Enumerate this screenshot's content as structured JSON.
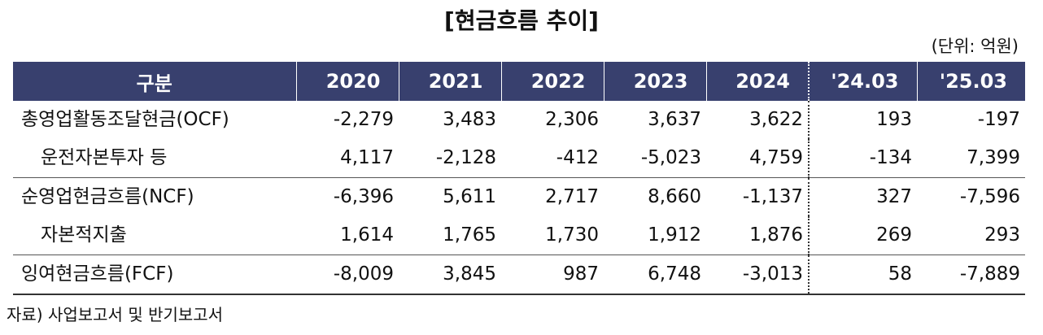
{
  "title": "[현금흐름 추이]",
  "unit": "(단위: 억원)",
  "table": {
    "headers": [
      "구분",
      "2020",
      "2021",
      "2022",
      "2023",
      "2024",
      "'24.03",
      "'25.03"
    ],
    "rows": [
      {
        "label": "총영업활동조달현금(OCF)",
        "values": [
          "-2,279",
          "3,483",
          "2,306",
          "3,637",
          "3,622",
          "193",
          "-197"
        ]
      },
      {
        "label": "운전자본투자 등",
        "values": [
          "4,117",
          "-2,128",
          "-412",
          "-5,023",
          "4,759",
          "-134",
          "7,399"
        ]
      },
      {
        "label": "순영업현금흐름(NCF)",
        "values": [
          "-6,396",
          "5,611",
          "2,717",
          "8,660",
          "-1,137",
          "327",
          "-7,596"
        ]
      },
      {
        "label": "자본적지출",
        "values": [
          "1,614",
          "1,765",
          "1,730",
          "1,912",
          "1,876",
          "269",
          "293"
        ]
      },
      {
        "label": "잉여현금흐름(FCF)",
        "values": [
          "-8,009",
          "3,845",
          "987",
          "6,748",
          "-3,013",
          "58",
          "-7,889"
        ]
      }
    ]
  },
  "source": "자료) 사업보고서 및 반기보고서",
  "colors": {
    "header_bg": "#38406e",
    "header_text": "#ffffff"
  }
}
